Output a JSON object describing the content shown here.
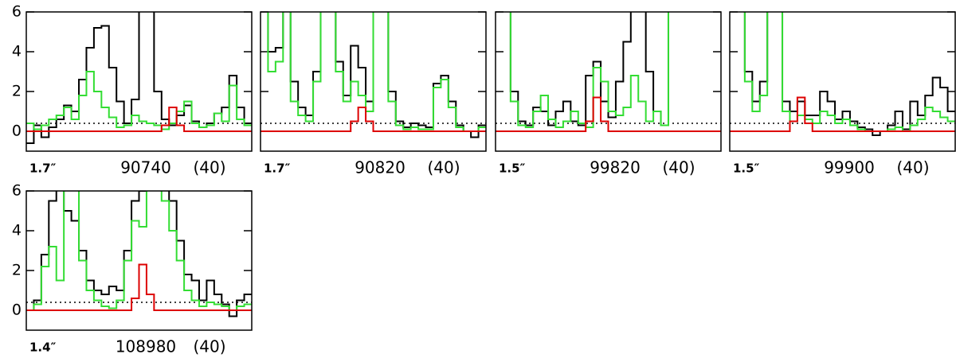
{
  "chart_data": [
    {
      "type": "line",
      "step": true,
      "label_left": "1.7″",
      "label": "90740",
      "label_right": "(40)",
      "xlim": [
        0,
        30
      ],
      "ylim": [
        -1,
        6
      ],
      "yticks": [
        0,
        2,
        4,
        6
      ],
      "ytick_labels": true,
      "reference_line": 0.4,
      "series": [
        {
          "color": "#000000",
          "values": [
            -0.6,
            0.3,
            -0.3,
            0.2,
            0.6,
            1.3,
            1.0,
            2.6,
            4.2,
            5.2,
            5.3,
            3.2,
            1.5,
            0.4,
            1.6,
            6.5,
            6.5,
            2.0,
            0.6,
            0.3,
            0.8,
            1.3,
            0.5,
            0.2,
            0.4,
            0.9,
            1.2,
            2.8,
            1.2,
            0.4
          ]
        },
        {
          "color": "#33dd33",
          "values": [
            0.4,
            0.1,
            0.3,
            0.6,
            0.8,
            1.2,
            0.6,
            1.8,
            3.0,
            2.0,
            1.2,
            0.7,
            0.2,
            0.3,
            0.8,
            0.5,
            0.4,
            0.3,
            0.1,
            0.4,
            1.0,
            1.5,
            0.4,
            0.2,
            0.3,
            0.9,
            0.5,
            2.3,
            0.6,
            0.3
          ]
        },
        {
          "color": "#dd0000",
          "values": [
            0,
            0,
            0,
            0,
            0,
            0,
            0,
            0,
            0,
            0,
            0,
            0,
            0,
            0,
            0,
            0,
            0,
            0,
            0.3,
            1.2,
            0.3,
            0,
            0,
            0,
            0,
            0,
            0,
            0,
            0,
            0
          ]
        }
      ]
    },
    {
      "type": "line",
      "step": true,
      "label_left": "1.7″",
      "label": "90820",
      "label_right": "(40)",
      "xlim": [
        0,
        30
      ],
      "ylim": [
        -1,
        6
      ],
      "yticks": [
        0,
        2,
        4,
        6
      ],
      "ytick_labels": false,
      "reference_line": 0.4,
      "series": [
        {
          "color": "#000000",
          "values": [
            6.5,
            4.0,
            4.2,
            6.5,
            2.5,
            1.2,
            0.8,
            3.0,
            6.5,
            6.5,
            3.5,
            1.8,
            4.3,
            3.2,
            1.5,
            6.5,
            6.5,
            2.0,
            0.5,
            0.2,
            0.4,
            0.3,
            0.2,
            2.4,
            2.8,
            1.5,
            0.3,
            0.0,
            -0.3,
            0.3
          ]
        },
        {
          "color": "#33dd33",
          "values": [
            6.5,
            3.0,
            3.5,
            6.5,
            1.5,
            0.8,
            0.5,
            2.5,
            6.5,
            6.5,
            3.0,
            1.5,
            2.5,
            1.8,
            1.0,
            6.5,
            6.5,
            1.5,
            0.3,
            0.1,
            0.2,
            0.1,
            0.1,
            2.2,
            2.6,
            1.2,
            0.2,
            0.0,
            0.0,
            0.2
          ]
        },
        {
          "color": "#dd0000",
          "values": [
            0,
            0,
            0,
            0,
            0,
            0,
            0,
            0,
            0,
            0,
            0,
            0,
            0.5,
            1.2,
            0.5,
            0,
            0,
            0,
            0,
            0,
            0,
            0,
            0,
            0,
            0,
            0,
            0,
            0,
            0,
            0
          ]
        }
      ]
    },
    {
      "type": "line",
      "step": true,
      "label_left": "1.5″",
      "label": "99820",
      "label_right": "(40)",
      "xlim": [
        0,
        30
      ],
      "ylim": [
        -1,
        6
      ],
      "yticks": [
        0,
        2,
        4,
        6
      ],
      "ytick_labels": false,
      "reference_line": 0.4,
      "series": [
        {
          "color": "#000000",
          "values": [
            6.5,
            6.5,
            2.0,
            0.5,
            0.3,
            1.2,
            1.0,
            0.3,
            1.0,
            1.5,
            0.5,
            0.3,
            2.8,
            3.5,
            1.5,
            0.7,
            2.5,
            4.5,
            6.5,
            6.5,
            3.0,
            1.0,
            0.3,
            6.5,
            6.5,
            6.5,
            6.5,
            6.5,
            6.5,
            6.5
          ]
        },
        {
          "color": "#33dd33",
          "values": [
            6.5,
            6.5,
            1.5,
            0.3,
            0.2,
            1.0,
            1.8,
            0.6,
            0.2,
            0.5,
            1.0,
            0.4,
            0.2,
            3.2,
            2.5,
            1.0,
            0.8,
            1.2,
            2.8,
            1.5,
            0.5,
            1.0,
            0.3,
            6.5,
            6.5,
            6.5,
            6.5,
            6.5,
            6.5,
            6.5
          ]
        },
        {
          "color": "#dd0000",
          "values": [
            0,
            0,
            0,
            0,
            0,
            0,
            0,
            0,
            0,
            0,
            0,
            0,
            0.5,
            1.7,
            0.5,
            0,
            0,
            0,
            0,
            0,
            0,
            0,
            0,
            0,
            0,
            0,
            0,
            0,
            0,
            0
          ]
        }
      ]
    },
    {
      "type": "line",
      "step": true,
      "label_left": "1.5″",
      "label": "99900",
      "label_right": "(40)",
      "xlim": [
        0,
        30
      ],
      "ylim": [
        -1,
        6
      ],
      "yticks": [
        0,
        2,
        4,
        6
      ],
      "ytick_labels": false,
      "reference_line": 0.4,
      "series": [
        {
          "color": "#000000",
          "values": [
            6.5,
            6.5,
            3.0,
            1.5,
            2.5,
            6.5,
            6.5,
            1.5,
            1.0,
            1.5,
            0.8,
            0.8,
            2.0,
            1.5,
            0.6,
            1.0,
            0.5,
            0.2,
            0.1,
            -0.2,
            0.0,
            0.3,
            1.0,
            0.1,
            1.5,
            0.8,
            1.8,
            2.7,
            2.2,
            1.0
          ]
        },
        {
          "color": "#33dd33",
          "values": [
            6.5,
            6.5,
            2.5,
            1.0,
            1.8,
            6.5,
            6.5,
            1.0,
            0.5,
            0.8,
            0.6,
            0.4,
            1.0,
            0.8,
            0.4,
            0.6,
            0.3,
            0.1,
            0.0,
            0.0,
            0.0,
            0.1,
            0.2,
            0.0,
            0.3,
            0.6,
            1.2,
            1.0,
            0.7,
            0.5
          ]
        },
        {
          "color": "#dd0000",
          "values": [
            0,
            0,
            0,
            0,
            0,
            0,
            0,
            0,
            0.5,
            1.7,
            0.4,
            0,
            0,
            0,
            0,
            0,
            0,
            0,
            0,
            0,
            0,
            0,
            0,
            0,
            0,
            0,
            0,
            0,
            0,
            0
          ]
        }
      ]
    },
    {
      "type": "line",
      "step": true,
      "label_left": "1.4″",
      "label": "108980",
      "label_right": "(40)",
      "xlim": [
        0,
        30
      ],
      "ylim": [
        -1,
        6
      ],
      "yticks": [
        0,
        2,
        4,
        6
      ],
      "ytick_labels": true,
      "reference_line": 0.4,
      "series": [
        {
          "color": "#000000",
          "values": [
            0.0,
            0.5,
            2.8,
            5.5,
            6.5,
            5.0,
            4.5,
            3.0,
            1.5,
            1.0,
            0.8,
            1.2,
            1.0,
            3.0,
            5.5,
            6.0,
            6.5,
            6.5,
            6.5,
            5.5,
            3.5,
            1.8,
            1.5,
            0.5,
            1.5,
            0.8,
            0.3,
            -0.3,
            0.5,
            0.8
          ]
        },
        {
          "color": "#33dd33",
          "values": [
            0.0,
            0.3,
            2.2,
            3.2,
            1.5,
            6.5,
            6.5,
            2.5,
            1.0,
            0.5,
            0.2,
            0.1,
            0.5,
            2.5,
            4.5,
            4.2,
            6.5,
            6.5,
            5.5,
            4.0,
            2.5,
            1.0,
            0.5,
            0.2,
            0.4,
            0.3,
            0.2,
            0.0,
            0.2,
            0.3
          ]
        },
        {
          "color": "#dd0000",
          "values": [
            0,
            0,
            0,
            0,
            0,
            0,
            0,
            0,
            0,
            0,
            0,
            0,
            0,
            0,
            0.6,
            2.3,
            0.8,
            0,
            0,
            0,
            0,
            0,
            0,
            0,
            0,
            0,
            0,
            0,
            0,
            0
          ]
        }
      ]
    }
  ]
}
